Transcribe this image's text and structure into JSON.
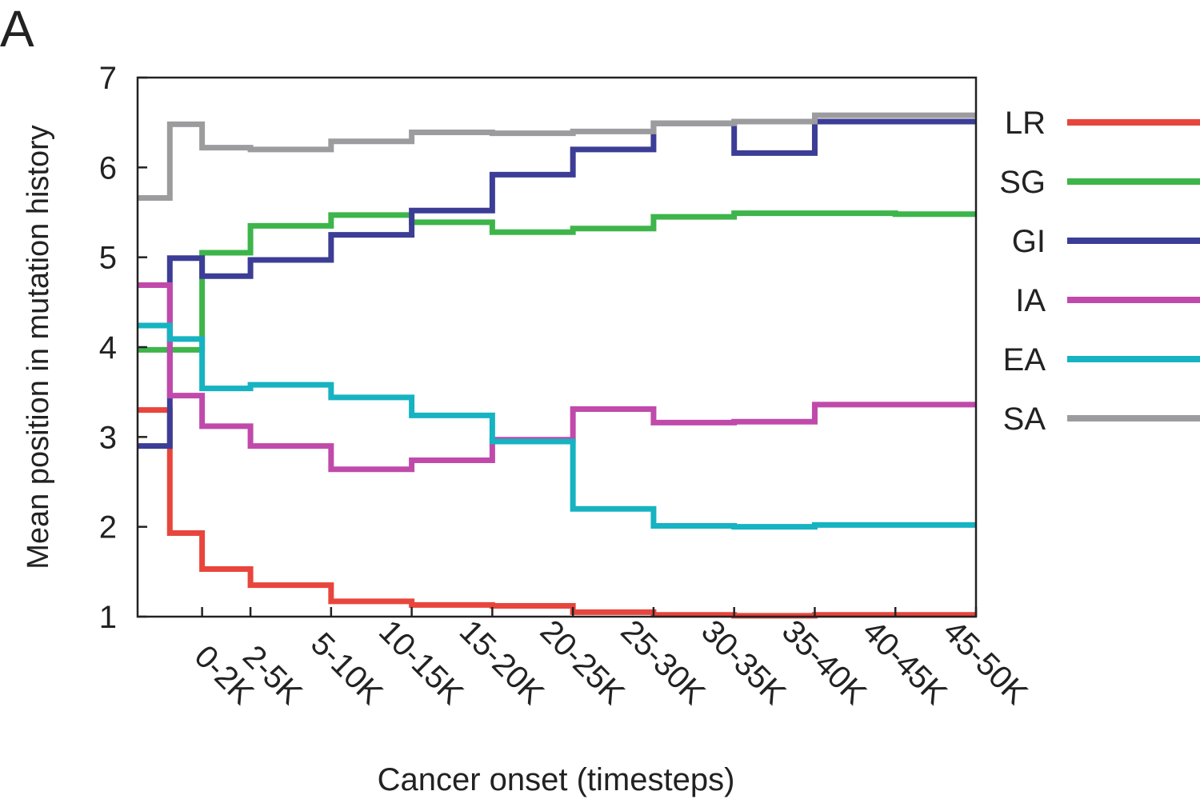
{
  "panel_label": "A",
  "chart_data": {
    "type": "line",
    "step": true,
    "xlabel": "Cancer onset (timesteps)",
    "ylabel": "Mean position in mutation history",
    "ylim": [
      1,
      7
    ],
    "yticks": [
      1,
      2,
      3,
      4,
      5,
      6,
      7
    ],
    "bins": [
      {
        "label": "0-2K",
        "start": 0,
        "end": 2
      },
      {
        "label": "2-5K",
        "start": 2,
        "end": 5
      },
      {
        "label": "5-10K",
        "start": 5,
        "end": 10
      },
      {
        "label": "10-15K",
        "start": 10,
        "end": 15
      },
      {
        "label": "15-20K",
        "start": 15,
        "end": 20
      },
      {
        "label": "20-25K",
        "start": 20,
        "end": 25
      },
      {
        "label": "25-30K",
        "start": 25,
        "end": 30
      },
      {
        "label": "30-35K",
        "start": 30,
        "end": 35
      },
      {
        "label": "35-40K",
        "start": 35,
        "end": 40
      },
      {
        "label": "40-45K",
        "start": 40,
        "end": 45
      },
      {
        "label": "45-50K",
        "start": 45,
        "end": 50
      }
    ],
    "x_start": -2,
    "first_value_x": 0,
    "series": [
      {
        "name": "LR",
        "color": "#e8453c",
        "first": 3.3,
        "values": [
          1.93,
          1.53,
          1.35,
          1.17,
          1.13,
          1.12,
          1.05,
          1.02,
          1.01,
          1.02,
          1.02
        ]
      },
      {
        "name": "SG",
        "color": "#3db54a",
        "first": 3.97,
        "values": [
          3.97,
          5.05,
          5.35,
          5.47,
          5.39,
          5.28,
          5.32,
          5.45,
          5.49,
          5.49,
          5.48
        ]
      },
      {
        "name": "GI",
        "color": "#3c3d96",
        "first": 2.9,
        "values": [
          4.99,
          4.79,
          4.97,
          5.25,
          5.52,
          5.92,
          6.2,
          6.49,
          6.16,
          6.51,
          6.51
        ]
      },
      {
        "name": "IA",
        "color": "#c04aab",
        "first": 4.69,
        "values": [
          3.46,
          3.12,
          2.9,
          2.64,
          2.74,
          2.97,
          3.31,
          3.16,
          3.17,
          3.36,
          3.36
        ]
      },
      {
        "name": "EA",
        "color": "#16b3c2",
        "first": 4.24,
        "values": [
          4.09,
          3.54,
          3.58,
          3.44,
          3.24,
          2.95,
          2.2,
          2.01,
          2.0,
          2.02,
          2.02
        ]
      },
      {
        "name": "SA",
        "color": "#9c9c9e",
        "first": 5.66,
        "values": [
          6.48,
          6.22,
          6.2,
          6.29,
          6.39,
          6.38,
          6.4,
          6.49,
          6.51,
          6.58,
          6.58
        ]
      }
    ],
    "legend_position": "right"
  }
}
